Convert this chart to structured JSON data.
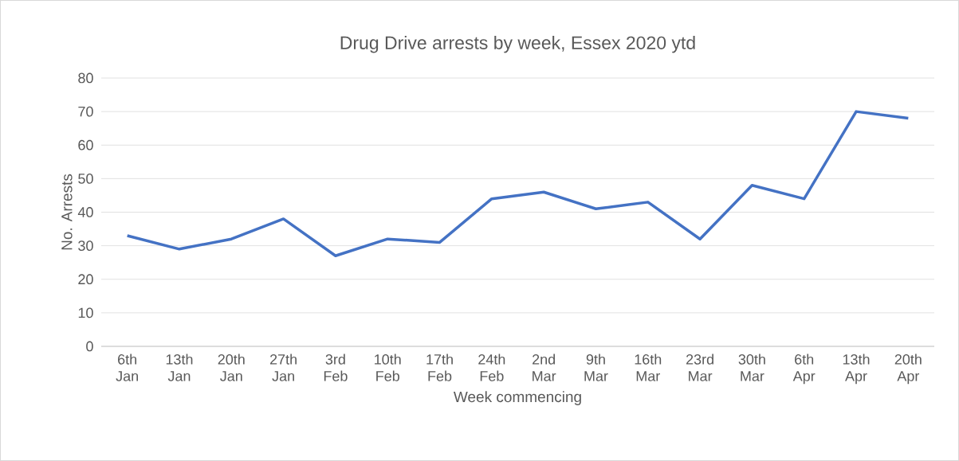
{
  "chart_data": {
    "type": "line",
    "title": "Drug Drive arrests by week, Essex 2020 ytd",
    "xlabel": "Week commencing",
    "ylabel": "No. Arrests",
    "categories": [
      "6th Jan",
      "13th Jan",
      "20th Jan",
      "27th Jan",
      "3rd Feb",
      "10th Feb",
      "17th Feb",
      "24th Feb",
      "2nd Mar",
      "9th Mar",
      "16th Mar",
      "23rd Mar",
      "30th Mar",
      "6th Apr",
      "13th Apr",
      "20th Apr"
    ],
    "values": [
      33,
      29,
      32,
      38,
      27,
      32,
      31,
      44,
      46,
      41,
      43,
      32,
      48,
      44,
      70,
      68
    ],
    "color": "#4472c4",
    "ylim": [
      0,
      80
    ],
    "yticks": [
      0,
      10,
      20,
      30,
      40,
      50,
      60,
      70,
      80
    ],
    "grid": "y"
  }
}
